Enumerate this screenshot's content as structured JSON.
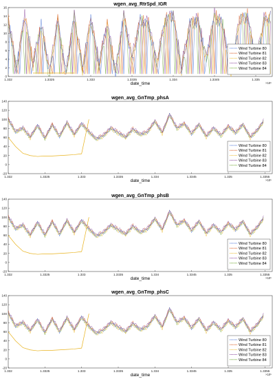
{
  "colors": [
    "#2f5fd0",
    "#d9541a",
    "#e8b21c",
    "#7b2d8e",
    "#6aa52c"
  ],
  "chart_data": [
    {
      "type": "line",
      "title": "wgen_avg_RtrSpd_IGR",
      "xlabel": "date_time",
      "x_exponent": "×10⁵",
      "xlim": [
        1.332,
        1.3352
      ],
      "ylim": [
        0,
        16
      ],
      "xticks": [
        1.332,
        1.3325,
        1.333,
        1.3335,
        1.334,
        1.3345,
        1.335
      ],
      "xtick_labels": [
        "1.332",
        "1.3325",
        "1.333",
        "1.3335",
        "1.334",
        "1.3345",
        "1.335"
      ],
      "yticks": [
        0,
        2,
        4,
        6,
        8,
        10,
        12,
        14,
        16
      ],
      "legend_position": "bottom-right",
      "series": [
        {
          "name": "Wind Turbine 80"
        },
        {
          "name": "Wind Turbine 81"
        },
        {
          "name": "Wind Turbine 82"
        },
        {
          "name": "Wind Turbine 83"
        },
        {
          "name": "Wind Turbine 84"
        }
      ],
      "gap_intervals": [
        [
          1.3323,
          1.3328
        ]
      ],
      "x": [
        1.332,
        1.3321,
        1.3322,
        1.3323,
        1.3324,
        1.3325,
        1.3326,
        1.3327,
        1.3328,
        1.3329,
        1.333,
        1.3331,
        1.3332,
        1.3333,
        1.3334,
        1.3335,
        1.3336,
        1.3337,
        1.3338,
        1.3339,
        1.334,
        1.3341,
        1.3342,
        1.3343,
        1.3344,
        1.3345,
        1.3346,
        1.3347,
        1.3348,
        1.3349,
        1.335,
        1.3351,
        1.3352
      ],
      "values": [
        13,
        2,
        14,
        3,
        12,
        1,
        13,
        0.5,
        14,
        2,
        13,
        3,
        12,
        1,
        14,
        4,
        13,
        12,
        3,
        13,
        14,
        2,
        12,
        13,
        4,
        14,
        12,
        1,
        13,
        14,
        3,
        13,
        14
      ]
    },
    {
      "type": "line",
      "title": "wgen_avg_GnTmp_phsA",
      "xlabel": "date_time",
      "x_exponent": "×10⁵",
      "xlim": [
        1.332,
        1.3356
      ],
      "ylim": [
        -20,
        140
      ],
      "xticks": [
        1.332,
        1.3325,
        1.333,
        1.3335,
        1.334,
        1.3345,
        1.335,
        1.3355
      ],
      "xtick_labels": [
        "1.332",
        "1.3325",
        "1.333",
        "1.3335",
        "1.334",
        "1.3345",
        "1.335",
        "1.3355"
      ],
      "yticks": [
        -20,
        0,
        20,
        40,
        60,
        80,
        100,
        120,
        140
      ],
      "legend_position": "bottom-right",
      "series": [
        {
          "name": "Wind Turbine 80"
        },
        {
          "name": "Wind Turbine 81"
        },
        {
          "name": "Wind Turbine 82"
        },
        {
          "name": "Wind Turbine 83"
        },
        {
          "name": "Wind Turbine 84"
        }
      ],
      "x": [
        1.332,
        1.3321,
        1.3322,
        1.3323,
        1.3324,
        1.3325,
        1.3326,
        1.3327,
        1.3328,
        1.3329,
        1.333,
        1.3331,
        1.3332,
        1.3333,
        1.3334,
        1.3335,
        1.3336,
        1.3337,
        1.3338,
        1.3339,
        1.334,
        1.3341,
        1.3342,
        1.3343,
        1.3344,
        1.3345,
        1.3346,
        1.3347,
        1.3348,
        1.3349,
        1.335,
        1.3351,
        1.3352,
        1.3353,
        1.3354,
        1.3355
      ],
      "values": [
        100,
        72,
        80,
        60,
        86,
        58,
        88,
        62,
        92,
        66,
        90,
        72,
        56,
        64,
        80,
        70,
        60,
        78,
        66,
        72,
        95,
        70,
        110,
        80,
        90,
        68,
        88,
        62,
        80,
        64,
        84,
        70,
        88,
        60,
        76,
        100
      ],
      "low_series": [
        60,
        40,
        25,
        20,
        18,
        19,
        19,
        20,
        21,
        22,
        24,
        100
      ]
    },
    {
      "type": "line",
      "title": "wgen_avg_GnTmp_phsB",
      "xlabel": "date_time",
      "x_exponent": "×10⁵",
      "xlim": [
        1.332,
        1.3356
      ],
      "ylim": [
        -20,
        140
      ],
      "xticks": [
        1.332,
        1.3325,
        1.333,
        1.3335,
        1.334,
        1.3345,
        1.335,
        1.3355
      ],
      "xtick_labels": [
        "1.332",
        "1.3325",
        "1.333",
        "1.3335",
        "1.334",
        "1.3345",
        "1.335",
        "1.3355"
      ],
      "yticks": [
        -20,
        0,
        20,
        40,
        60,
        80,
        100,
        120,
        140
      ],
      "legend_position": "bottom-right",
      "series": [
        {
          "name": "Wind Turbine 80"
        },
        {
          "name": "Wind Turbine 81"
        },
        {
          "name": "Wind Turbine 82"
        },
        {
          "name": "Wind Turbine 83"
        },
        {
          "name": "Wind Turbine 84"
        }
      ],
      "x": [
        1.332,
        1.3321,
        1.3322,
        1.3323,
        1.3324,
        1.3325,
        1.3326,
        1.3327,
        1.3328,
        1.3329,
        1.333,
        1.3331,
        1.3332,
        1.3333,
        1.3334,
        1.3335,
        1.3336,
        1.3337,
        1.3338,
        1.3339,
        1.334,
        1.3341,
        1.3342,
        1.3343,
        1.3344,
        1.3345,
        1.3346,
        1.3347,
        1.3348,
        1.3349,
        1.335,
        1.3351,
        1.3352,
        1.3353,
        1.3354,
        1.3355
      ],
      "values": [
        100,
        74,
        82,
        60,
        88,
        60,
        90,
        62,
        92,
        66,
        92,
        74,
        58,
        66,
        82,
        72,
        62,
        80,
        66,
        74,
        96,
        72,
        112,
        82,
        92,
        70,
        90,
        64,
        82,
        66,
        86,
        72,
        90,
        62,
        78,
        102
      ],
      "low_series": [
        60,
        40,
        25,
        20,
        18,
        19,
        19,
        20,
        21,
        22,
        24,
        100
      ]
    },
    {
      "type": "line",
      "title": "wgen_avg_GnTmp_phsC",
      "xlabel": "date_time",
      "x_exponent": "×10⁵",
      "xlim": [
        1.332,
        1.3356
      ],
      "ylim": [
        -20,
        140
      ],
      "xticks": [
        1.332,
        1.3325,
        1.333,
        1.3335,
        1.334,
        1.3345,
        1.335,
        1.3355
      ],
      "xtick_labels": [
        "1.332",
        "1.3325",
        "1.333",
        "1.3335",
        "1.334",
        "1.3345",
        "1.335",
        "1.3355"
      ],
      "yticks": [
        -20,
        0,
        20,
        40,
        60,
        80,
        100,
        120,
        140
      ],
      "legend_position": "bottom-right",
      "series": [
        {
          "name": "Wind Turbine 80"
        },
        {
          "name": "Wind Turbine 81"
        },
        {
          "name": "Wind Turbine 82"
        },
        {
          "name": "Wind Turbine 83"
        },
        {
          "name": "Wind Turbine 84"
        }
      ],
      "x": [
        1.332,
        1.3321,
        1.3322,
        1.3323,
        1.3324,
        1.3325,
        1.3326,
        1.3327,
        1.3328,
        1.3329,
        1.333,
        1.3331,
        1.3332,
        1.3333,
        1.3334,
        1.3335,
        1.3336,
        1.3337,
        1.3338,
        1.3339,
        1.334,
        1.3341,
        1.3342,
        1.3343,
        1.3344,
        1.3345,
        1.3346,
        1.3347,
        1.3348,
        1.3349,
        1.335,
        1.3351,
        1.3352,
        1.3353,
        1.3354,
        1.3355
      ],
      "values": [
        102,
        72,
        80,
        62,
        86,
        58,
        88,
        60,
        90,
        64,
        92,
        72,
        56,
        64,
        80,
        70,
        60,
        78,
        64,
        72,
        94,
        70,
        110,
        80,
        90,
        68,
        88,
        62,
        80,
        64,
        84,
        70,
        88,
        60,
        76,
        100
      ],
      "low_series": [
        60,
        40,
        25,
        20,
        18,
        19,
        19,
        20,
        21,
        22,
        24,
        100
      ]
    }
  ]
}
